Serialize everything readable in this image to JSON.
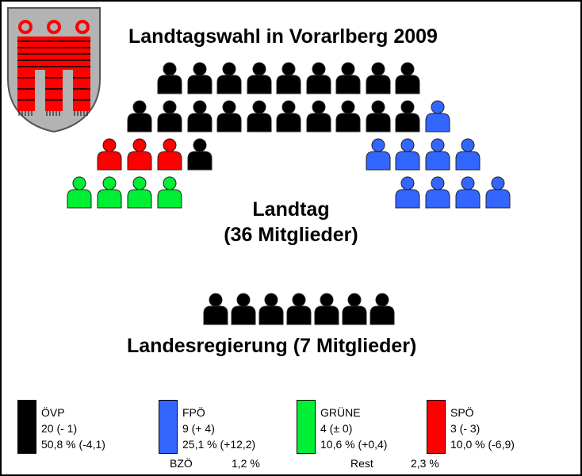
{
  "title": "Landtagswahl in Vorarlberg 2009",
  "landtag": {
    "name": "Landtag",
    "members": "(36 Mitglieder)"
  },
  "landesregierung": {
    "label": "Landesregierung (7 Mitglieder)",
    "seats": [
      {
        "party": "ÖVP",
        "count": 7
      }
    ]
  },
  "coat_of_arms_icon": "vorarlberg-coat-of-arms",
  "chart_data": {
    "type": "parliament-seat-diagram",
    "total_seats": 36,
    "parties": [
      {
        "name": "ÖVP",
        "seats": 20,
        "seat_change": "(- 1)",
        "percent": "50,8 %",
        "percent_change": "(-4,1)",
        "color": "#000000"
      },
      {
        "name": "FPÖ",
        "seats": 9,
        "seat_change": "(+ 4)",
        "percent": "25,1 %",
        "percent_change": "(+12,2)",
        "color": "#3366ff"
      },
      {
        "name": "GRÜNE",
        "seats": 4,
        "seat_change": "(± 0)",
        "percent": "10,6 %",
        "percent_change": "(+0,4)",
        "color": "#00ee33"
      },
      {
        "name": "SPÖ",
        "seats": 3,
        "seat_change": "(- 3)",
        "percent": "10,0 %",
        "percent_change": "(-6,9)",
        "color": "#ff0000"
      }
    ],
    "other": [
      {
        "name": "BZÖ",
        "percent": "1,2 %"
      },
      {
        "name": "Rest",
        "percent": "2,3 %"
      }
    ]
  },
  "legend": [
    {
      "name": "ÖVP",
      "line2": "20 (- 1)",
      "line3": "50,8 % (-4,1)",
      "color": "#000000"
    },
    {
      "name": "FPÖ",
      "line2": "9 (+ 4)",
      "line3": "25,1 % (+12,2)",
      "color": "#3366ff"
    },
    {
      "name": "GRÜNE",
      "line2": "4 (± 0)",
      "line3": "10,6 % (+0,4)",
      "color": "#00ee33"
    },
    {
      "name": "SPÖ",
      "line2": "3 (- 3)",
      "line3": "10,0 % (-6,9)",
      "color": "#ff0000"
    }
  ],
  "others_row": [
    {
      "name": "BZÖ",
      "value": "1,2 %"
    },
    {
      "name": "Rest",
      "value": "2,3 %"
    }
  ]
}
